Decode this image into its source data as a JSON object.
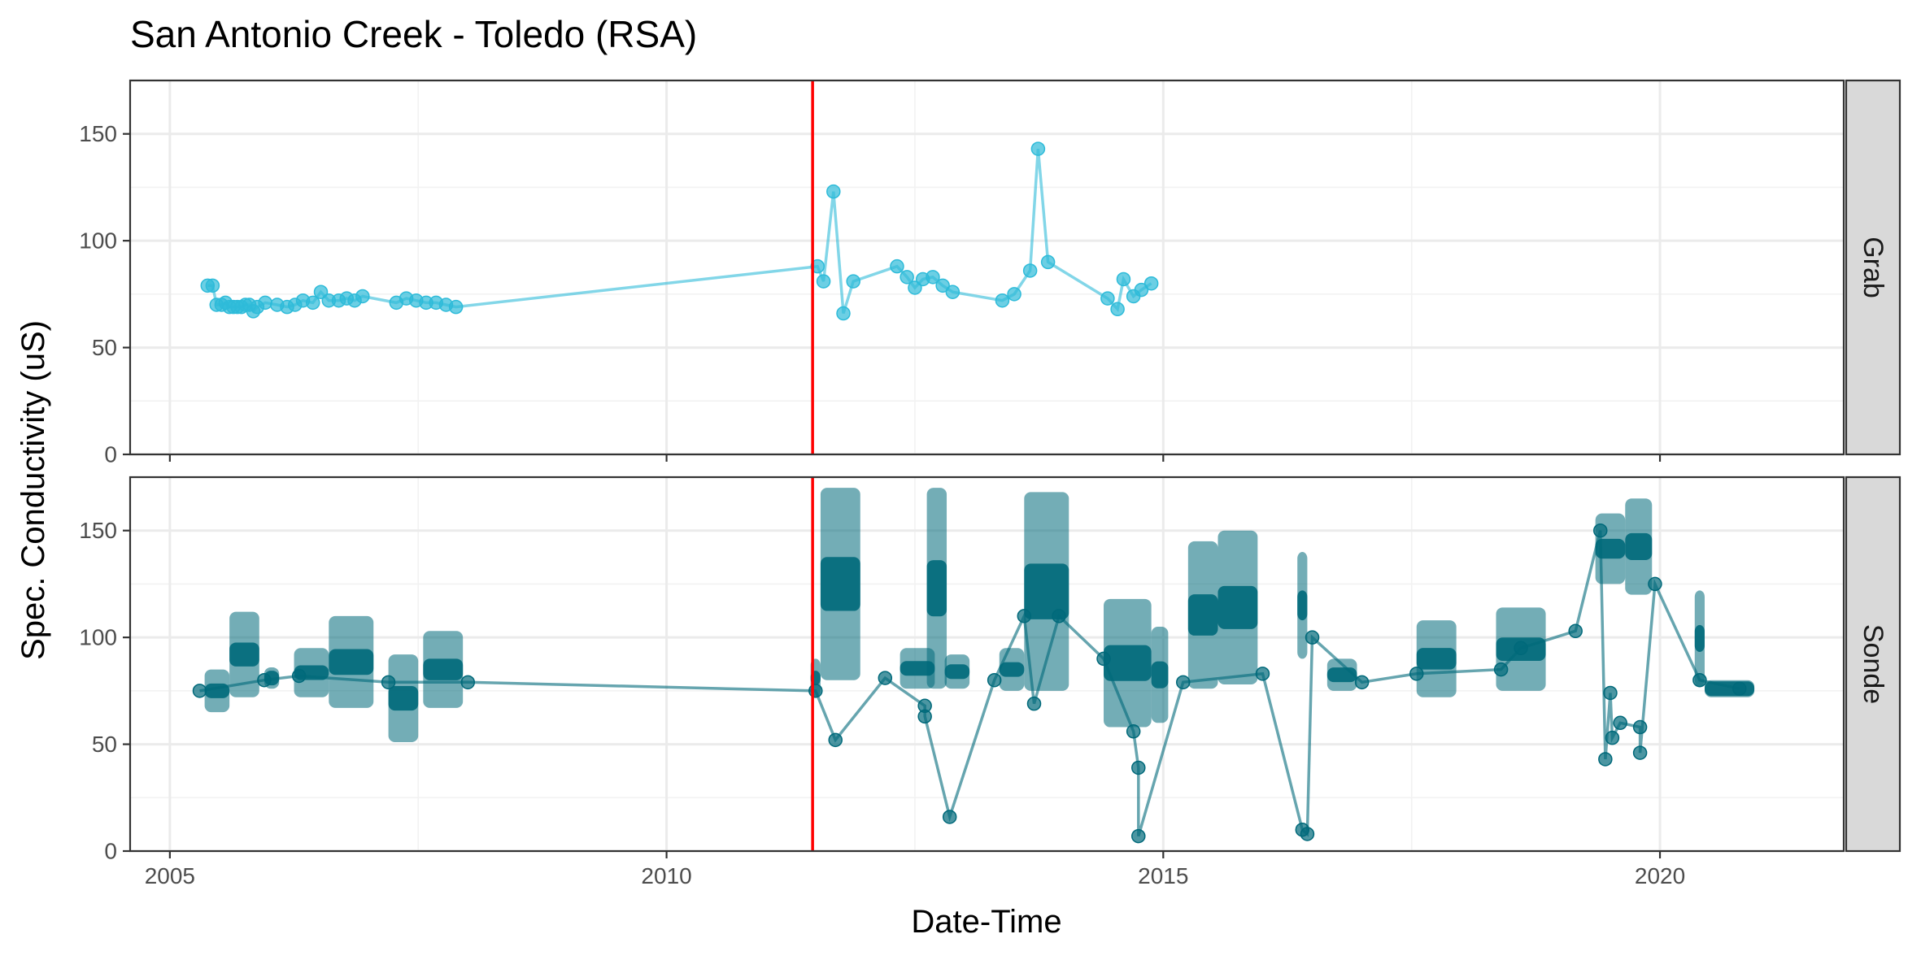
{
  "chart_data": {
    "type": "line",
    "title": "San Antonio Creek - Toledo (RSA)",
    "xlabel": "Date-Time",
    "ylabel": "Spec. Conductivity (uS)",
    "xlim": [
      2004.6,
      2021.85
    ],
    "ylim": [
      0,
      175
    ],
    "x_ticks": [
      2005,
      2010,
      2015,
      2020
    ],
    "y_ticks": [
      0,
      50,
      100,
      150
    ],
    "vline_x": 2011.47,
    "vline_color": "#ff0000",
    "grid": true,
    "panels": [
      {
        "name": "Grab",
        "color": "#2ebbd9",
        "segments": [],
        "points": [
          [
            2005.38,
            79
          ],
          [
            2005.43,
            79
          ],
          [
            2005.47,
            70
          ],
          [
            2005.52,
            70
          ],
          [
            2005.56,
            71
          ],
          [
            2005.6,
            69
          ],
          [
            2005.64,
            69
          ],
          [
            2005.68,
            69
          ],
          [
            2005.72,
            69
          ],
          [
            2005.76,
            70
          ],
          [
            2005.8,
            70
          ],
          [
            2005.84,
            67
          ],
          [
            2005.88,
            69
          ],
          [
            2005.96,
            71
          ],
          [
            2006.08,
            70
          ],
          [
            2006.18,
            69
          ],
          [
            2006.26,
            70
          ],
          [
            2006.34,
            72
          ],
          [
            2006.44,
            71
          ],
          [
            2006.52,
            76
          ],
          [
            2006.6,
            72
          ],
          [
            2006.7,
            72
          ],
          [
            2006.78,
            73
          ],
          [
            2006.86,
            72
          ],
          [
            2006.94,
            74
          ],
          [
            2007.28,
            71
          ],
          [
            2007.38,
            73
          ],
          [
            2007.48,
            72
          ],
          [
            2007.58,
            71
          ],
          [
            2007.68,
            71
          ],
          [
            2007.78,
            70
          ],
          [
            2007.88,
            69
          ],
          [
            2011.52,
            88
          ],
          [
            2011.58,
            81
          ],
          [
            2011.68,
            123
          ],
          [
            2011.78,
            66
          ],
          [
            2011.88,
            81
          ],
          [
            2012.32,
            88
          ],
          [
            2012.42,
            83
          ],
          [
            2012.5,
            78
          ],
          [
            2012.58,
            82
          ],
          [
            2012.68,
            83
          ],
          [
            2012.78,
            79
          ],
          [
            2012.88,
            76
          ],
          [
            2013.38,
            72
          ],
          [
            2013.5,
            75
          ],
          [
            2013.66,
            86
          ],
          [
            2013.74,
            143
          ],
          [
            2013.84,
            90
          ],
          [
            2014.44,
            73
          ],
          [
            2014.54,
            68
          ],
          [
            2014.6,
            82
          ],
          [
            2014.7,
            74
          ],
          [
            2014.78,
            77
          ],
          [
            2014.88,
            80
          ]
        ]
      },
      {
        "name": "Sonde",
        "color": "#00697a",
        "segments": [
          [
            2005.35,
            2005.6,
            65,
            85
          ],
          [
            2005.6,
            2005.9,
            72,
            112
          ],
          [
            2005.95,
            2006.1,
            76,
            86
          ],
          [
            2006.25,
            2006.6,
            72,
            95
          ],
          [
            2006.6,
            2007.05,
            67,
            110
          ],
          [
            2007.2,
            2007.5,
            51,
            92
          ],
          [
            2007.55,
            2007.95,
            67,
            103
          ],
          [
            2011.45,
            2011.55,
            72,
            90
          ],
          [
            2011.55,
            2011.95,
            80,
            170
          ],
          [
            2012.35,
            2012.7,
            76,
            95
          ],
          [
            2012.62,
            2012.82,
            76,
            170
          ],
          [
            2012.8,
            2013.05,
            76,
            92
          ],
          [
            2013.35,
            2013.6,
            75,
            95
          ],
          [
            2013.6,
            2014.05,
            75,
            168
          ],
          [
            2014.4,
            2014.88,
            58,
            118
          ],
          [
            2014.88,
            2015.05,
            60,
            105
          ],
          [
            2015.25,
            2015.55,
            76,
            145
          ],
          [
            2015.55,
            2015.95,
            78,
            150
          ],
          [
            2016.35,
            2016.45,
            90,
            140
          ],
          [
            2016.65,
            2016.95,
            75,
            90
          ],
          [
            2017.55,
            2017.95,
            72,
            108
          ],
          [
            2018.35,
            2018.85,
            75,
            114
          ],
          [
            2019.35,
            2019.65,
            125,
            158
          ],
          [
            2019.65,
            2019.92,
            120,
            165
          ],
          [
            2020.35,
            2020.45,
            77,
            122
          ],
          [
            2020.45,
            2020.95,
            72,
            80
          ]
        ],
        "points": [
          [
            2005.3,
            75
          ],
          [
            2005.95,
            80
          ],
          [
            2006.3,
            82
          ],
          [
            2007.2,
            79
          ],
          [
            2008.0,
            79
          ],
          [
            2011.5,
            75
          ],
          [
            2011.7,
            52
          ],
          [
            2012.2,
            81
          ],
          [
            2012.6,
            68
          ],
          [
            2012.6,
            63
          ],
          [
            2012.85,
            16
          ],
          [
            2013.3,
            80
          ],
          [
            2013.6,
            110
          ],
          [
            2013.7,
            69
          ],
          [
            2013.95,
            110
          ],
          [
            2014.4,
            90
          ],
          [
            2014.7,
            56
          ],
          [
            2014.75,
            39
          ],
          [
            2014.75,
            7
          ],
          [
            2015.2,
            79
          ],
          [
            2016.0,
            83
          ],
          [
            2016.4,
            10
          ],
          [
            2016.45,
            8
          ],
          [
            2016.5,
            100
          ],
          [
            2017.0,
            79
          ],
          [
            2017.55,
            83
          ],
          [
            2018.4,
            85
          ],
          [
            2018.6,
            95
          ],
          [
            2019.15,
            103
          ],
          [
            2019.4,
            150
          ],
          [
            2019.45,
            43
          ],
          [
            2019.5,
            74
          ],
          [
            2019.52,
            53
          ],
          [
            2019.6,
            60
          ],
          [
            2019.8,
            58
          ],
          [
            2019.8,
            46
          ],
          [
            2019.95,
            125
          ],
          [
            2020.4,
            80
          ],
          [
            2020.8,
            76
          ]
        ]
      }
    ]
  }
}
